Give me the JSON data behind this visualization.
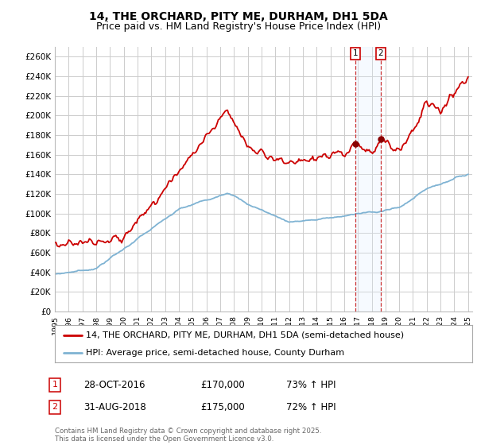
{
  "title": "14, THE ORCHARD, PITY ME, DURHAM, DH1 5DA",
  "subtitle": "Price paid vs. HM Land Registry's House Price Index (HPI)",
  "ylim": [
    0,
    270000
  ],
  "yticks": [
    0,
    20000,
    40000,
    60000,
    80000,
    100000,
    120000,
    140000,
    160000,
    180000,
    200000,
    220000,
    240000,
    260000
  ],
  "ytick_labels": [
    "£0",
    "£20K",
    "£40K",
    "£60K",
    "£80K",
    "£100K",
    "£120K",
    "£140K",
    "£160K",
    "£180K",
    "£200K",
    "£220K",
    "£240K",
    "£260K"
  ],
  "background_color": "#ffffff",
  "grid_color": "#cccccc",
  "red_line_color": "#cc0000",
  "blue_line_color": "#7fb3d3",
  "shade_color": "#ddeeff",
  "marker1_date": "28-OCT-2016",
  "marker1_price": 170000,
  "marker1_hpi": "73% ↑ HPI",
  "marker1_year": 2016.79,
  "marker2_date": "31-AUG-2018",
  "marker2_price": 175000,
  "marker2_hpi": "72% ↑ HPI",
  "marker2_year": 2018.67,
  "legend1": "14, THE ORCHARD, PITY ME, DURHAM, DH1 5DA (semi-detached house)",
  "legend2": "HPI: Average price, semi-detached house, County Durham",
  "footnote": "Contains HM Land Registry data © Crown copyright and database right 2025.\nThis data is licensed under the Open Government Licence v3.0.",
  "title_fontsize": 10,
  "subtitle_fontsize": 9,
  "tick_fontsize": 7.5,
  "legend_fontsize": 8
}
